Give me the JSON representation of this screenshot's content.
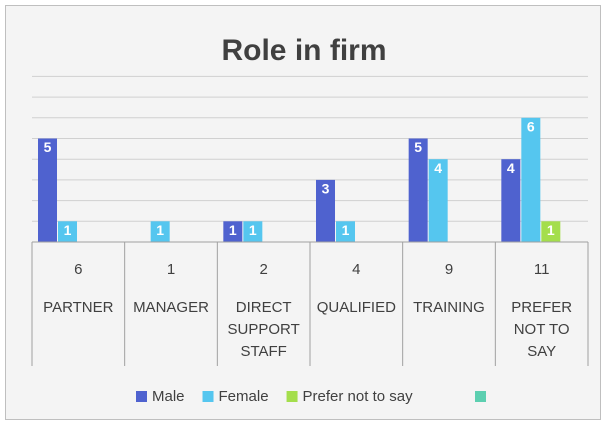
{
  "chart_data": {
    "type": "bar",
    "title": "Role in firm",
    "categories": [
      "PARTNER",
      "MANAGER",
      "DIRECT SUPPORT STAFF",
      "QUALIFIED",
      "TRAINING",
      "PREFER NOT TO SAY"
    ],
    "totals": [
      6,
      1,
      2,
      4,
      9,
      11
    ],
    "series": [
      {
        "name": "Male",
        "color": "#4f62cf",
        "values": [
          5,
          null,
          1,
          3,
          5,
          4
        ]
      },
      {
        "name": "Female",
        "color": "#55c6ef",
        "values": [
          1,
          1,
          1,
          1,
          4,
          6
        ]
      },
      {
        "name": "Prefer not to say",
        "color": "#a4de4c",
        "values": [
          null,
          null,
          null,
          null,
          null,
          1
        ]
      }
    ],
    "ylim": [
      0,
      8
    ],
    "yticks": [
      0,
      1,
      2,
      3,
      4,
      5,
      6,
      7,
      8
    ],
    "grid": true
  }
}
